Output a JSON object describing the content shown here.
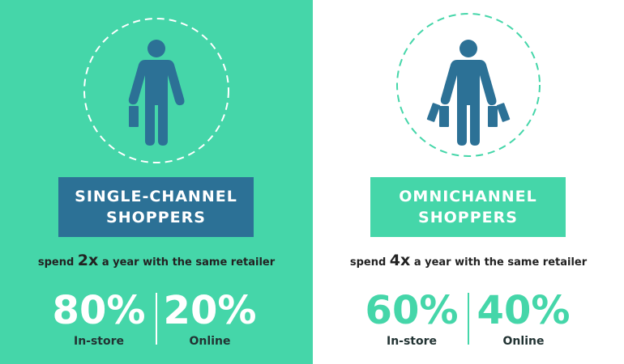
{
  "colors": {
    "green": "#45d6a9",
    "blue": "#2c7196",
    "text": "#222222"
  },
  "single": {
    "icon": "person-with-one-bag-icon",
    "title_line1": "SINGLE-CHANNEL",
    "title_line2": "SHOPPERS",
    "spend_prefix": "spend",
    "spend_value": "2x",
    "spend_suffix": "a year with the same retailer",
    "stats": [
      {
        "value": "80%",
        "label": "In-store"
      },
      {
        "value": "20%",
        "label": "Online"
      }
    ]
  },
  "omni": {
    "icon": "person-with-two-bags-icon",
    "title_line1": "OMNICHANNEL",
    "title_line2": "SHOPPERS",
    "spend_prefix": "spend",
    "spend_value": "4x",
    "spend_suffix": "a year with the same retailer",
    "stats": [
      {
        "value": "60%",
        "label": "In-store"
      },
      {
        "value": "40%",
        "label": "Online"
      }
    ]
  }
}
